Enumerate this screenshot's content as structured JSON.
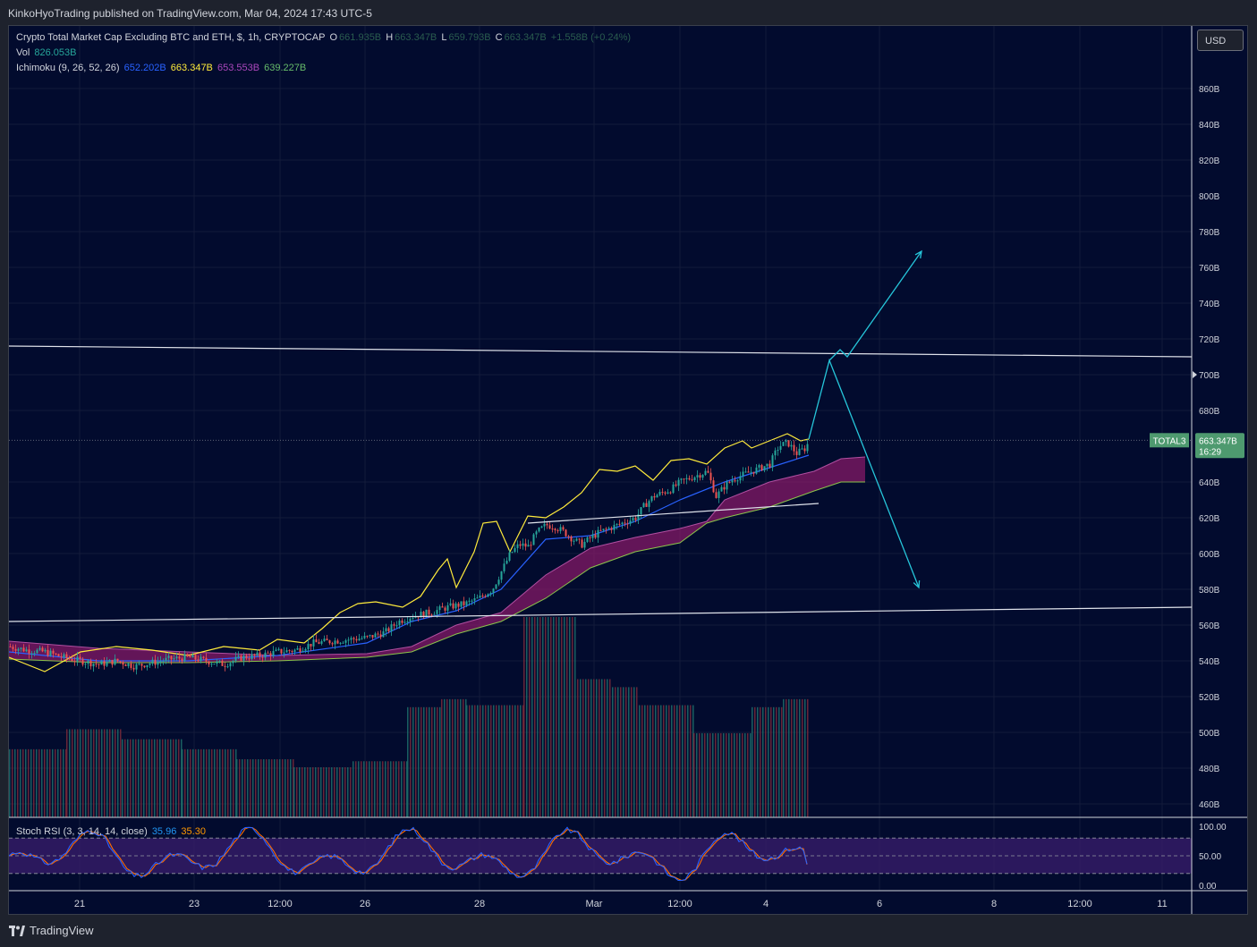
{
  "header": {
    "published": "KinkoHyoTrading published on TradingView.com, Mar 04, 2024 17:43 UTC-5"
  },
  "legend": {
    "symbol": "Crypto Total Market Cap Excluding BTC and ETH, $, 1h, CRYPTOCAP",
    "o_label": "O",
    "o_val": "661.935B",
    "h_label": "H",
    "h_val": "663.347B",
    "l_label": "L",
    "l_val": "659.793B",
    "c_label": "C",
    "c_val": "663.347B",
    "change": "+1.558B (+0.24%)",
    "vol_label": "Vol",
    "vol_val": "826.053B",
    "ichi_label": "Ichimoku (9, 26, 52, 26)",
    "ichi_v1": "652.202B",
    "ichi_v2": "663.347B",
    "ichi_v3": "653.553B",
    "ichi_v4": "639.227B",
    "stoch_label": "Stoch RSI (3, 3, 14, 14, close)",
    "stoch_k": "35.96",
    "stoch_d": "35.30"
  },
  "currency_button": "USD",
  "price_tag": {
    "symbol": "TOTAL3",
    "price": "663.347B",
    "countdown": "16:29"
  },
  "footer": {
    "brand": "TradingView"
  },
  "colors": {
    "background": "#020b2e",
    "candle_up": "#26a69a",
    "candle_down": "#ef5350",
    "tenkan": "#2962ff",
    "kijun_chikou": "#ffeb3b",
    "cloud": "#8d1a6b",
    "projection": "#26c6da",
    "stoch_k": "#2962ff",
    "stoch_d": "#ff6d00",
    "tag": "#4e9a6f"
  },
  "chart_data": {
    "type": "candlestick",
    "symbol": "TOTAL3",
    "interval": "1h",
    "ylim": [
      450,
      870
    ],
    "y_ticks": [
      "860B",
      "840B",
      "820B",
      "800B",
      "780B",
      "760B",
      "740B",
      "720B",
      "700B",
      "680B",
      "640B",
      "620B",
      "600B",
      "580B",
      "560B",
      "540B",
      "520B",
      "500B",
      "480B",
      "460B"
    ],
    "x_ticks": [
      "21",
      "23",
      "12:00",
      "26",
      "28",
      "Mar",
      "12:00",
      "4",
      "6",
      "8",
      "12:00",
      "11"
    ],
    "last_price": 663.347,
    "price_series": [
      [
        0,
        548
      ],
      [
        20,
        546
      ],
      [
        40,
        545
      ],
      [
        60,
        542
      ],
      [
        80,
        540
      ],
      [
        100,
        538
      ],
      [
        120,
        540
      ],
      [
        140,
        537
      ],
      [
        160,
        539
      ],
      [
        180,
        541
      ],
      [
        200,
        542
      ],
      [
        220,
        540
      ],
      [
        240,
        538
      ],
      [
        260,
        542
      ],
      [
        280,
        543
      ],
      [
        300,
        545
      ],
      [
        320,
        546
      ],
      [
        340,
        550
      ],
      [
        360,
        551
      ],
      [
        380,
        552
      ],
      [
        400,
        553
      ],
      [
        420,
        556
      ],
      [
        435,
        562
      ],
      [
        450,
        565
      ],
      [
        470,
        567
      ],
      [
        490,
        570
      ],
      [
        510,
        572
      ],
      [
        525,
        575
      ],
      [
        540,
        580
      ],
      [
        550,
        590
      ],
      [
        560,
        600
      ],
      [
        570,
        605
      ],
      [
        580,
        604
      ],
      [
        590,
        612
      ],
      [
        600,
        616
      ],
      [
        610,
        615
      ],
      [
        620,
        612
      ],
      [
        630,
        608
      ],
      [
        640,
        605
      ],
      [
        650,
        609
      ],
      [
        660,
        612
      ],
      [
        670,
        614
      ],
      [
        680,
        616
      ],
      [
        690,
        618
      ],
      [
        700,
        620
      ],
      [
        710,
        627
      ],
      [
        720,
        632
      ],
      [
        730,
        634
      ],
      [
        740,
        636
      ],
      [
        750,
        640
      ],
      [
        760,
        642
      ],
      [
        770,
        644
      ],
      [
        780,
        646
      ],
      [
        790,
        632
      ],
      [
        800,
        638
      ],
      [
        810,
        642
      ],
      [
        820,
        644
      ],
      [
        830,
        646
      ],
      [
        840,
        648
      ],
      [
        850,
        650
      ],
      [
        860,
        660
      ],
      [
        870,
        662
      ],
      [
        880,
        656
      ],
      [
        890,
        659
      ],
      [
        894,
        663
      ]
    ],
    "ichimoku": {
      "tenkan": [
        [
          0,
          545
        ],
        [
          100,
          540
        ],
        [
          200,
          540
        ],
        [
          300,
          543
        ],
        [
          400,
          550
        ],
        [
          450,
          562
        ],
        [
          500,
          568
        ],
        [
          550,
          580
        ],
        [
          600,
          608
        ],
        [
          650,
          610
        ],
        [
          700,
          618
        ],
        [
          750,
          630
        ],
        [
          800,
          640
        ],
        [
          850,
          648
        ],
        [
          894,
          655
        ]
      ],
      "chikou": [
        [
          0,
          542
        ],
        [
          40,
          534
        ],
        [
          80,
          545
        ],
        [
          120,
          548
        ],
        [
          160,
          546
        ],
        [
          200,
          543
        ],
        [
          240,
          548
        ],
        [
          280,
          546
        ],
        [
          300,
          552
        ],
        [
          330,
          550
        ],
        [
          350,
          558
        ],
        [
          370,
          567
        ],
        [
          390,
          572
        ],
        [
          410,
          573
        ],
        [
          440,
          570
        ],
        [
          460,
          576
        ],
        [
          480,
          591
        ],
        [
          490,
          597
        ],
        [
          500,
          581
        ],
        [
          520,
          601
        ],
        [
          530,
          617
        ],
        [
          545,
          618
        ],
        [
          560,
          601
        ],
        [
          580,
          621
        ],
        [
          600,
          620
        ],
        [
          620,
          626
        ],
        [
          640,
          634
        ],
        [
          660,
          647
        ],
        [
          680,
          646
        ],
        [
          700,
          649
        ],
        [
          720,
          641
        ],
        [
          740,
          652
        ],
        [
          760,
          653
        ],
        [
          780,
          650
        ],
        [
          800,
          659
        ],
        [
          820,
          663
        ],
        [
          830,
          659
        ],
        [
          850,
          663
        ],
        [
          870,
          667
        ],
        [
          885,
          663
        ],
        [
          894,
          664
        ]
      ]
    },
    "cloud": {
      "upper": [
        [
          0,
          551
        ],
        [
          100,
          547
        ],
        [
          200,
          545
        ],
        [
          300,
          543
        ],
        [
          400,
          544
        ],
        [
          450,
          548
        ],
        [
          500,
          560
        ],
        [
          550,
          567
        ],
        [
          600,
          588
        ],
        [
          650,
          603
        ],
        [
          700,
          609
        ],
        [
          750,
          614
        ],
        [
          780,
          618
        ],
        [
          800,
          630
        ],
        [
          850,
          640
        ],
        [
          900,
          646
        ],
        [
          930,
          653
        ],
        [
          957,
          654
        ]
      ],
      "lower": [
        [
          0,
          541
        ],
        [
          100,
          539
        ],
        [
          200,
          539
        ],
        [
          300,
          540
        ],
        [
          400,
          542
        ],
        [
          450,
          545
        ],
        [
          500,
          555
        ],
        [
          550,
          562
        ],
        [
          600,
          575
        ],
        [
          650,
          592
        ],
        [
          700,
          601
        ],
        [
          750,
          606
        ],
        [
          780,
          617
        ],
        [
          800,
          620
        ],
        [
          850,
          626
        ],
        [
          900,
          635
        ],
        [
          930,
          640
        ],
        [
          957,
          640
        ]
      ]
    },
    "trendlines": [
      {
        "name": "upper-resistance",
        "points": [
          [
            0,
            716
          ],
          [
            1322,
            710
          ]
        ]
      },
      {
        "name": "lower-support",
        "points": [
          [
            0,
            562
          ],
          [
            1322,
            570
          ]
        ]
      },
      {
        "name": "short-support",
        "points": [
          [
            580,
            617
          ],
          [
            905,
            628
          ]
        ]
      }
    ],
    "projection": {
      "scenario_down": [
        [
          894,
          664
        ],
        [
          917,
          708
        ],
        [
          1017,
          581
        ]
      ],
      "scenario_up": [
        [
          917,
          708
        ],
        [
          929,
          714
        ],
        [
          937,
          710
        ],
        [
          1020,
          769
        ]
      ]
    },
    "volume_bars": [
      {
        "x0": 0,
        "x1": 64,
        "h": 0.34
      },
      {
        "x0": 64,
        "x1": 126,
        "h": 0.44
      },
      {
        "x0": 126,
        "x1": 193,
        "h": 0.39
      },
      {
        "x0": 193,
        "x1": 254,
        "h": 0.34
      },
      {
        "x0": 254,
        "x1": 318,
        "h": 0.29
      },
      {
        "x0": 318,
        "x1": 384,
        "h": 0.25
      },
      {
        "x0": 384,
        "x1": 445,
        "h": 0.28
      },
      {
        "x0": 445,
        "x1": 483,
        "h": 0.55
      },
      {
        "x0": 483,
        "x1": 511,
        "h": 0.59
      },
      {
        "x0": 511,
        "x1": 575,
        "h": 0.56
      },
      {
        "x0": 575,
        "x1": 635,
        "h": 1.0
      },
      {
        "x0": 635,
        "x1": 674,
        "h": 0.69
      },
      {
        "x0": 674,
        "x1": 704,
        "h": 0.65
      },
      {
        "x0": 704,
        "x1": 765,
        "h": 0.56
      },
      {
        "x0": 765,
        "x1": 830,
        "h": 0.42
      },
      {
        "x0": 830,
        "x1": 865,
        "h": 0.55
      },
      {
        "x0": 865,
        "x1": 894,
        "h": 0.59
      }
    ],
    "stoch_rsi": {
      "ylim": [
        0,
        100
      ],
      "y_ticks": [
        "100.00",
        "50.00",
        "0.00"
      ],
      "k_last": 35.96,
      "d_last": 35.3
    }
  }
}
